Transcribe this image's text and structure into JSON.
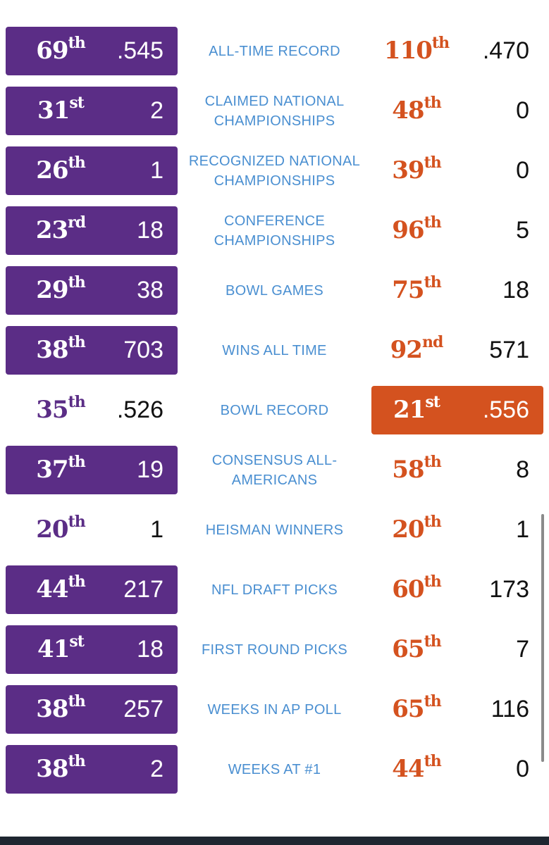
{
  "colors": {
    "purple": "#5b2d86",
    "orange": "#d4521f",
    "label_blue": "#4a8fd1"
  },
  "rows": [
    {
      "label": "ALL-TIME RECORD",
      "left": {
        "rank": "69",
        "suffix": "th",
        "value": ".545",
        "boxed": true
      },
      "right": {
        "rank": "110",
        "suffix": "th",
        "value": ".470",
        "boxed": false
      }
    },
    {
      "label": "CLAIMED NATIONAL\nCHAMPIONSHIPS",
      "left": {
        "rank": "31",
        "suffix": "st",
        "value": "2",
        "boxed": true
      },
      "right": {
        "rank": "48",
        "suffix": "th",
        "value": "0",
        "boxed": false
      }
    },
    {
      "label": "RECOGNIZED NATIONAL\nCHAMPIONSHIPS",
      "left": {
        "rank": "26",
        "suffix": "th",
        "value": "1",
        "boxed": true
      },
      "right": {
        "rank": "39",
        "suffix": "th",
        "value": "0",
        "boxed": false
      }
    },
    {
      "label": "CONFERENCE\nCHAMPIONSHIPS",
      "left": {
        "rank": "23",
        "suffix": "rd",
        "value": "18",
        "boxed": true
      },
      "right": {
        "rank": "96",
        "suffix": "th",
        "value": "5",
        "boxed": false
      }
    },
    {
      "label": "BOWL GAMES",
      "left": {
        "rank": "29",
        "suffix": "th",
        "value": "38",
        "boxed": true
      },
      "right": {
        "rank": "75",
        "suffix": "th",
        "value": "18",
        "boxed": false
      }
    },
    {
      "label": "WINS ALL TIME",
      "left": {
        "rank": "38",
        "suffix": "th",
        "value": "703",
        "boxed": true
      },
      "right": {
        "rank": "92",
        "suffix": "nd",
        "value": "571",
        "boxed": false
      }
    },
    {
      "label": "BOWL RECORD",
      "left": {
        "rank": "35",
        "suffix": "th",
        "value": ".526",
        "boxed": false
      },
      "right": {
        "rank": "21",
        "suffix": "st",
        "value": ".556",
        "boxed": true
      }
    },
    {
      "label": "CONSENSUS ALL-\nAMERICANS",
      "left": {
        "rank": "37",
        "suffix": "th",
        "value": "19",
        "boxed": true
      },
      "right": {
        "rank": "58",
        "suffix": "th",
        "value": "8",
        "boxed": false
      }
    },
    {
      "label": "HEISMAN WINNERS",
      "left": {
        "rank": "20",
        "suffix": "th",
        "value": "1",
        "boxed": false
      },
      "right": {
        "rank": "20",
        "suffix": "th",
        "value": "1",
        "boxed": false
      }
    },
    {
      "label": "NFL DRAFT PICKS",
      "left": {
        "rank": "44",
        "suffix": "th",
        "value": "217",
        "boxed": true
      },
      "right": {
        "rank": "60",
        "suffix": "th",
        "value": "173",
        "boxed": false
      }
    },
    {
      "label": "FIRST ROUND PICKS",
      "left": {
        "rank": "41",
        "suffix": "st",
        "value": "18",
        "boxed": true
      },
      "right": {
        "rank": "65",
        "suffix": "th",
        "value": "7",
        "boxed": false
      }
    },
    {
      "label": "WEEKS IN AP POLL",
      "left": {
        "rank": "38",
        "suffix": "th",
        "value": "257",
        "boxed": true
      },
      "right": {
        "rank": "65",
        "suffix": "th",
        "value": "116",
        "boxed": false
      }
    },
    {
      "label": "WEEKS AT #1",
      "left": {
        "rank": "38",
        "suffix": "th",
        "value": "2",
        "boxed": true
      },
      "right": {
        "rank": "44",
        "suffix": "th",
        "value": "0",
        "boxed": false
      }
    }
  ]
}
